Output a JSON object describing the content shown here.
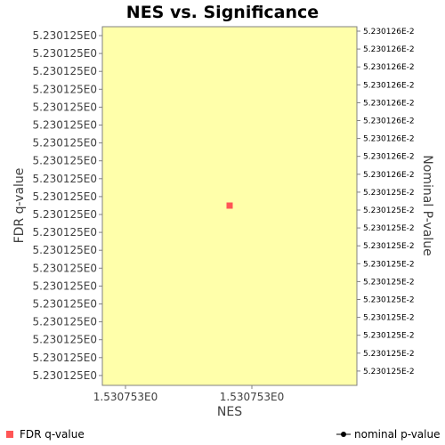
{
  "chart_data": {
    "type": "scatter",
    "title": "NES vs. Significance",
    "xlabel": "NES",
    "ylabel": "FDR q-value",
    "y2label": "Nominal P-value",
    "x_ticks": [
      "1.530753E0",
      "1.530753E0"
    ],
    "y_ticks": [
      "5.230125E0",
      "5.230125E0",
      "5.230125E0",
      "5.230125E0",
      "5.230125E0",
      "5.230125E0",
      "5.230125E0",
      "5.230125E0",
      "5.230125E0",
      "5.230125E0",
      "5.230125E0",
      "5.230125E0",
      "5.230125E0",
      "5.230125E0",
      "5.230125E0",
      "5.230125E0",
      "5.230125E0",
      "5.230125E0",
      "5.230125E0",
      "5.230125E0"
    ],
    "y2_ticks": [
      "5.230126E-2",
      "5.230126E-2",
      "5.230126E-2",
      "5.230126E-2",
      "5.230126E-2",
      "5.230126E-2",
      "5.230126E-2",
      "5.230126E-2",
      "5.230126E-2",
      "5.230125E-2",
      "5.230125E-2",
      "5.230125E-2",
      "5.230125E-2",
      "5.230125E-2",
      "5.230125E-2",
      "5.230125E-2",
      "5.230125E-2",
      "5.230125E-2",
      "5.230125E-2",
      "5.230125E-2"
    ],
    "series": [
      {
        "name": "FDR q-value",
        "marker": "square",
        "color": "#ff5555",
        "points": [
          {
            "x": 1.530753,
            "y": 5.230125
          }
        ]
      },
      {
        "name": "nominal p-value",
        "marker": "line-dot",
        "color": "#000000",
        "points": []
      }
    ],
    "plot_background": "#ffffaa",
    "grid": false,
    "legend_position": "bottom"
  }
}
